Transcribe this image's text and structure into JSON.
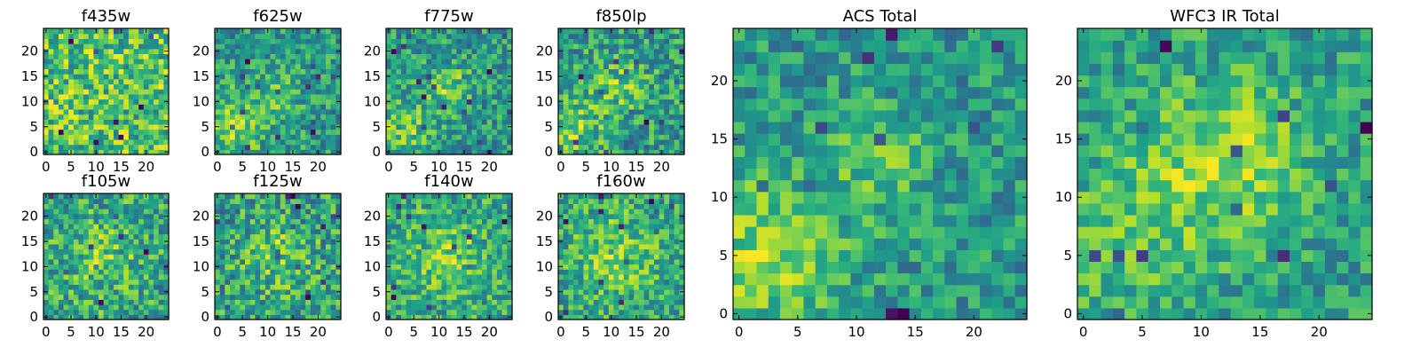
{
  "colormap": "viridis",
  "chart_data": [
    {
      "type": "heatmap",
      "title": "f435w",
      "grid_size": 25,
      "xlim": [
        -0.5,
        24.5
      ],
      "ylim": [
        -0.5,
        24.5
      ],
      "xticks": [
        0,
        5,
        10,
        15,
        20
      ],
      "yticks": [
        0,
        5,
        10,
        15,
        20
      ],
      "origin": "lower",
      "seed": 11,
      "noise": 0.42,
      "bias": 0.72,
      "blobs": []
    },
    {
      "type": "heatmap",
      "title": "f625w",
      "grid_size": 25,
      "xlim": [
        -0.5,
        24.5
      ],
      "ylim": [
        -0.5,
        24.5
      ],
      "xticks": [
        0,
        5,
        10,
        15,
        20
      ],
      "yticks": [
        0,
        5,
        10,
        15,
        20
      ],
      "origin": "lower",
      "seed": 23,
      "noise": 0.4,
      "bias": 0.42,
      "blobs": [
        [
          3,
          5,
          4,
          0.5
        ],
        [
          11,
          11,
          4,
          0.25
        ]
      ]
    },
    {
      "type": "heatmap",
      "title": "f775w",
      "grid_size": 25,
      "xlim": [
        -0.5,
        24.5
      ],
      "ylim": [
        -0.5,
        24.5
      ],
      "xticks": [
        0,
        5,
        10,
        15,
        20
      ],
      "yticks": [
        0,
        5,
        10,
        15,
        20
      ],
      "origin": "lower",
      "seed": 37,
      "noise": 0.38,
      "bias": 0.45,
      "blobs": [
        [
          3,
          5,
          4,
          0.4
        ],
        [
          12,
          13,
          3,
          0.4
        ]
      ]
    },
    {
      "type": "heatmap",
      "title": "f850lp",
      "grid_size": 25,
      "xlim": [
        -0.5,
        24.5
      ],
      "ylim": [
        -0.5,
        24.5
      ],
      "xticks": [
        0,
        5,
        10,
        15,
        20
      ],
      "yticks": [
        0,
        5,
        10,
        15,
        20
      ],
      "origin": "lower",
      "seed": 41,
      "noise": 0.4,
      "bias": 0.55,
      "blobs": [
        [
          3,
          5,
          4,
          0.35
        ],
        [
          12,
          13,
          4,
          0.3
        ]
      ]
    },
    {
      "type": "heatmap",
      "title": "f105w",
      "grid_size": 25,
      "xlim": [
        -0.5,
        24.5
      ],
      "ylim": [
        -0.5,
        24.5
      ],
      "xticks": [
        0,
        5,
        10,
        15,
        20
      ],
      "yticks": [
        0,
        5,
        10,
        15,
        20
      ],
      "origin": "lower",
      "seed": 53,
      "noise": 0.4,
      "bias": 0.55,
      "blobs": [
        [
          12,
          12,
          5,
          0.25
        ]
      ]
    },
    {
      "type": "heatmap",
      "title": "f125w",
      "grid_size": 25,
      "xlim": [
        -0.5,
        24.5
      ],
      "ylim": [
        -0.5,
        24.5
      ],
      "xticks": [
        0,
        5,
        10,
        15,
        20
      ],
      "yticks": [
        0,
        5,
        10,
        15,
        20
      ],
      "origin": "lower",
      "seed": 61,
      "noise": 0.42,
      "bias": 0.55,
      "blobs": [
        [
          12,
          12,
          5,
          0.3
        ]
      ]
    },
    {
      "type": "heatmap",
      "title": "f140w",
      "grid_size": 25,
      "xlim": [
        -0.5,
        24.5
      ],
      "ylim": [
        -0.5,
        24.5
      ],
      "xticks": [
        0,
        5,
        10,
        15,
        20
      ],
      "yticks": [
        0,
        5,
        10,
        15,
        20
      ],
      "origin": "lower",
      "seed": 73,
      "noise": 0.38,
      "bias": 0.58,
      "blobs": [
        [
          12,
          12,
          6,
          0.3
        ]
      ]
    },
    {
      "type": "heatmap",
      "title": "f160w",
      "grid_size": 25,
      "xlim": [
        -0.5,
        24.5
      ],
      "ylim": [
        -0.5,
        24.5
      ],
      "xticks": [
        0,
        5,
        10,
        15,
        20
      ],
      "yticks": [
        0,
        5,
        10,
        15,
        20
      ],
      "origin": "lower",
      "seed": 89,
      "noise": 0.36,
      "bias": 0.6,
      "blobs": [
        [
          11,
          12,
          7,
          0.3
        ]
      ]
    },
    {
      "type": "heatmap",
      "title": "ACS Total",
      "grid_size": 25,
      "xlim": [
        -0.5,
        24.5
      ],
      "ylim": [
        -0.5,
        24.5
      ],
      "xticks": [
        0,
        5,
        10,
        15,
        20
      ],
      "yticks": [
        0,
        5,
        10,
        15,
        20
      ],
      "origin": "lower",
      "seed": 97,
      "noise": 0.36,
      "bias": 0.42,
      "blobs": [
        [
          2,
          5,
          5,
          0.5
        ],
        [
          12,
          13,
          3,
          0.35
        ]
      ]
    },
    {
      "type": "heatmap",
      "title": "WFC3 IR Total",
      "grid_size": 25,
      "xlim": [
        -0.5,
        24.5
      ],
      "ylim": [
        -0.5,
        24.5
      ],
      "xticks": [
        0,
        5,
        10,
        15,
        20
      ],
      "yticks": [
        0,
        5,
        10,
        15,
        20
      ],
      "origin": "lower",
      "seed": 103,
      "noise": 0.3,
      "bias": 0.5,
      "blobs": [
        [
          12,
          13,
          5,
          0.45
        ],
        [
          2,
          6,
          5,
          0.25
        ]
      ]
    }
  ]
}
